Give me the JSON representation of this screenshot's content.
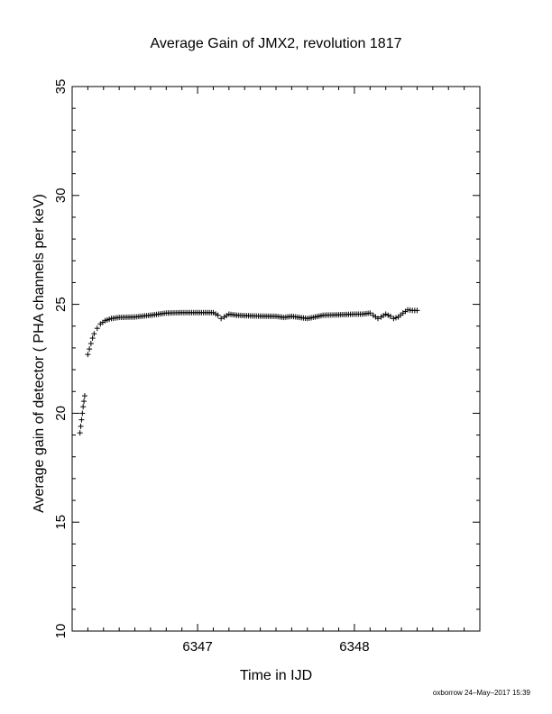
{
  "chart_data": {
    "type": "scatter",
    "title": "Average Gain of JMX2, revolution 1817",
    "xlabel": "Time in IJD",
    "ylabel": "Average gain of detector ( PHA channels per keV)",
    "xlim": [
      6346.2,
      6348.8
    ],
    "ylim": [
      10,
      35
    ],
    "xticks": [
      6347,
      6348
    ],
    "yticks": [
      10,
      15,
      20,
      25,
      30,
      35
    ],
    "xtick_labels": [
      "6347",
      "6348"
    ],
    "ytick_labels": [
      "10",
      "15",
      "20",
      "25",
      "30",
      "35"
    ],
    "marker": "plus",
    "marker_color": "#000000",
    "grid": false,
    "series": [
      {
        "points": [
          [
            6346.25,
            19.1
          ],
          [
            6346.255,
            19.4
          ],
          [
            6346.26,
            19.7
          ],
          [
            6346.265,
            20.0
          ],
          [
            6346.27,
            20.3
          ],
          [
            6346.275,
            20.55
          ],
          [
            6346.28,
            20.8
          ],
          [
            6346.3,
            22.7
          ],
          [
            6346.31,
            22.95
          ],
          [
            6346.32,
            23.2
          ],
          [
            6346.33,
            23.45
          ],
          [
            6346.34,
            23.65
          ],
          [
            6346.36,
            23.9
          ],
          [
            6346.38,
            24.1
          ],
          [
            6346.41,
            24.25
          ],
          [
            6346.45,
            24.35
          ],
          [
            6346.5,
            24.4
          ],
          [
            6346.6,
            24.42
          ],
          [
            6346.7,
            24.5
          ],
          [
            6346.8,
            24.6
          ],
          [
            6346.9,
            24.62
          ],
          [
            6347.0,
            24.62
          ],
          [
            6347.1,
            24.62
          ],
          [
            6347.13,
            24.5
          ],
          [
            6347.15,
            24.35
          ],
          [
            6347.17,
            24.42
          ],
          [
            6347.2,
            24.55
          ],
          [
            6347.25,
            24.5
          ],
          [
            6347.3,
            24.48
          ],
          [
            6347.4,
            24.46
          ],
          [
            6347.5,
            24.45
          ],
          [
            6347.55,
            24.4
          ],
          [
            6347.6,
            24.45
          ],
          [
            6347.65,
            24.4
          ],
          [
            6347.7,
            24.35
          ],
          [
            6347.75,
            24.42
          ],
          [
            6347.8,
            24.5
          ],
          [
            6347.9,
            24.52
          ],
          [
            6348.0,
            24.55
          ],
          [
            6348.05,
            24.55
          ],
          [
            6348.1,
            24.6
          ],
          [
            6348.12,
            24.5
          ],
          [
            6348.15,
            24.35
          ],
          [
            6348.17,
            24.42
          ],
          [
            6348.2,
            24.55
          ],
          [
            6348.23,
            24.45
          ],
          [
            6348.25,
            24.35
          ],
          [
            6348.28,
            24.42
          ],
          [
            6348.31,
            24.6
          ],
          [
            6348.34,
            24.75
          ],
          [
            6348.37,
            24.72
          ],
          [
            6348.4,
            24.72
          ]
        ]
      }
    ]
  },
  "footer": {
    "credit": "oxborrow 24–May–2017 15:39"
  }
}
